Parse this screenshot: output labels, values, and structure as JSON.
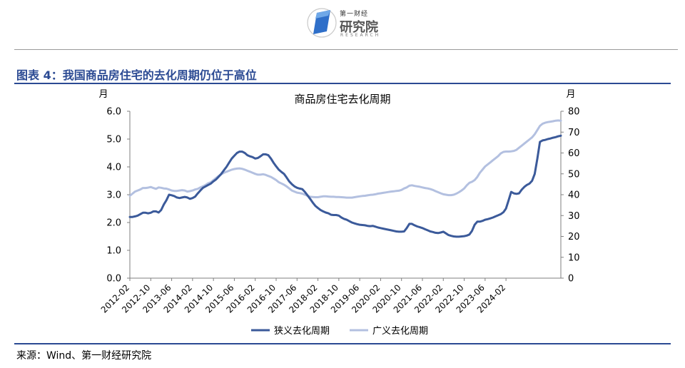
{
  "header": {
    "logo_small": "第一财经",
    "logo_big": "研究院",
    "logo_en": "RESEARCH"
  },
  "figure_title": "图表 4：我国商品房住宅的去化周期仍位于高位",
  "source": "来源：Wind、第一财经研究院",
  "colors": {
    "accent": "#2b4a93",
    "series_narrow": "#3b5a9a",
    "series_broad": "#b3c0e0"
  },
  "chart_data": {
    "type": "line",
    "title": "商品房住宅去化周期",
    "ylabel_left": "月",
    "ylabel_right": "月",
    "ylim_left": [
      0,
      6
    ],
    "ylim_right": [
      0,
      80
    ],
    "yticks_left": [
      "0.0",
      "1.0",
      "2.0",
      "3.0",
      "4.0",
      "5.0",
      "6.0"
    ],
    "yticks_right": [
      "0",
      "10",
      "20",
      "30",
      "40",
      "50",
      "60",
      "70",
      "80"
    ],
    "x_start": "2012-02",
    "xtick_labels": [
      "2012-02",
      "2012-10",
      "2013-06",
      "2014-02",
      "2014-10",
      "2015-06",
      "2016-02",
      "2016-10",
      "2017-06",
      "2018-02",
      "2018-10",
      "2019-06",
      "2020-02",
      "2020-10",
      "2021-06",
      "2022-02",
      "2022-10",
      "2023-06",
      "2024-02"
    ],
    "legend_position": "bottom",
    "grid": false,
    "series": [
      {
        "name": "狭义去化周期",
        "axis": "left",
        "values": [
          2.2,
          2.2,
          2.22,
          2.25,
          2.3,
          2.35,
          2.35,
          2.33,
          2.35,
          2.4,
          2.4,
          2.36,
          2.45,
          2.65,
          2.8,
          3.0,
          2.98,
          2.95,
          2.9,
          2.88,
          2.9,
          2.92,
          2.9,
          2.85,
          2.88,
          2.93,
          3.05,
          3.15,
          3.25,
          3.3,
          3.35,
          3.4,
          3.48,
          3.55,
          3.65,
          3.75,
          3.88,
          4.0,
          4.15,
          4.3,
          4.4,
          4.5,
          4.55,
          4.55,
          4.5,
          4.42,
          4.38,
          4.35,
          4.3,
          4.32,
          4.38,
          4.45,
          4.45,
          4.42,
          4.3,
          4.15,
          4.02,
          3.9,
          3.82,
          3.75,
          3.62,
          3.48,
          3.38,
          3.3,
          3.25,
          3.22,
          3.2,
          3.1,
          2.98,
          2.85,
          2.72,
          2.6,
          2.52,
          2.45,
          2.4,
          2.36,
          2.33,
          2.28,
          2.27,
          2.27,
          2.25,
          2.18,
          2.13,
          2.1,
          2.05,
          2.0,
          1.97,
          1.94,
          1.92,
          1.91,
          1.9,
          1.88,
          1.87,
          1.88,
          1.85,
          1.82,
          1.8,
          1.78,
          1.76,
          1.74,
          1.72,
          1.7,
          1.68,
          1.67,
          1.67,
          1.68,
          1.8,
          1.95,
          1.95,
          1.9,
          1.86,
          1.83,
          1.8,
          1.76,
          1.72,
          1.68,
          1.66,
          1.63,
          1.62,
          1.64,
          1.67,
          1.61,
          1.55,
          1.52,
          1.5,
          1.49,
          1.49,
          1.5,
          1.51,
          1.53,
          1.57,
          1.7,
          1.92,
          2.03,
          2.03,
          2.06,
          2.1,
          2.12,
          2.15,
          2.18,
          2.22,
          2.26,
          2.3,
          2.37,
          2.5,
          2.8,
          3.1,
          3.05,
          3.03,
          3.05,
          3.18,
          3.28,
          3.35,
          3.4,
          3.5,
          3.75,
          4.3,
          4.9,
          4.95,
          4.97,
          5.0,
          5.02,
          5.05,
          5.07,
          5.1,
          5.12
        ]
      },
      {
        "name": "广义去化周期",
        "axis": "right",
        "values": [
          39.5,
          40.5,
          41.5,
          42.0,
          42.5,
          43.2,
          43.2,
          43.4,
          43.7,
          43.2,
          42.8,
          43.5,
          43.3,
          43.0,
          42.9,
          42.5,
          42.0,
          41.8,
          41.8,
          42.0,
          42.2,
          42.0,
          41.5,
          41.7,
          42.0,
          42.5,
          42.8,
          43.5,
          44.0,
          44.7,
          45.5,
          46.0,
          47.0,
          48.0,
          49.0,
          49.8,
          50.5,
          51.0,
          51.5,
          52.0,
          52.3,
          52.5,
          52.6,
          52.4,
          52.0,
          51.5,
          51.0,
          50.5,
          50.0,
          49.6,
          49.6,
          49.8,
          49.5,
          49.0,
          48.5,
          47.8,
          47.0,
          46.0,
          45.4,
          44.8,
          44.0,
          43.0,
          42.0,
          41.5,
          41.0,
          40.8,
          40.5,
          40.0,
          39.5,
          39.0,
          38.9,
          38.8,
          38.8,
          39.0,
          39.2,
          39.2,
          39.1,
          39.0,
          39.0,
          38.9,
          38.9,
          38.8,
          38.7,
          38.6,
          38.6,
          38.6,
          38.8,
          39.0,
          39.2,
          39.4,
          39.5,
          39.7,
          39.9,
          40.0,
          40.2,
          40.5,
          40.7,
          40.9,
          41.1,
          41.3,
          41.5,
          41.6,
          41.8,
          41.9,
          42.3,
          43.0,
          43.5,
          44.3,
          44.5,
          44.2,
          44.0,
          43.8,
          43.5,
          43.2,
          43.0,
          42.7,
          42.3,
          41.7,
          41.2,
          40.7,
          40.2,
          40.0,
          39.8,
          39.8,
          40.0,
          40.5,
          41.2,
          42.0,
          43.0,
          44.5,
          45.7,
          46.2,
          47.0,
          48.5,
          50.5,
          52.0,
          53.5,
          54.5,
          55.5,
          56.5,
          57.5,
          58.5,
          59.8,
          60.5,
          60.7,
          60.7,
          60.8,
          61.0,
          61.5,
          62.5,
          63.5,
          64.5,
          65.5,
          66.5,
          67.5,
          69.0,
          71.0,
          73.0,
          74.0,
          74.5,
          74.8,
          75.0,
          75.2,
          75.5,
          75.6,
          75.5
        ]
      }
    ]
  }
}
